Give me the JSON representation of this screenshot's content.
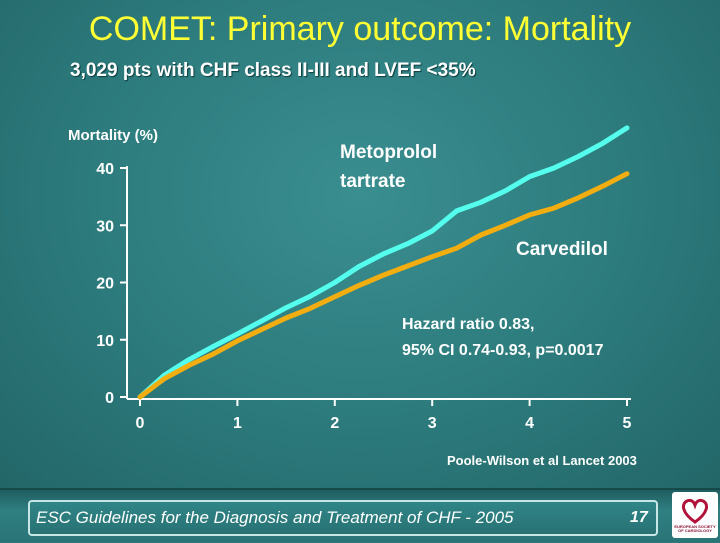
{
  "title": "COMET: Primary outcome: Mortality",
  "subtitle": "3,029 pts with CHF class II-III and LVEF <35%",
  "citation": "Poole-Wilson et al Lancet 2003",
  "annotations": {
    "hazard_line1": "Hazard ratio 0.83,",
    "hazard_line2": "95% CI 0.74-0.93, p=0.0017"
  },
  "footer": {
    "text": "ESC Guidelines for the Diagnosis and Treatment of CHF - 2005",
    "page_number": "17",
    "logo_text": "EUROPEAN SOCIETY OF CARDIOLOGY"
  },
  "colors": {
    "metoprolol": "#55ffee",
    "carvedilol": "#f2ad10",
    "axis": "#ffffff",
    "title": "#ffff33"
  },
  "chart_data": {
    "type": "line",
    "ylabel": "Mortality (%)",
    "xlabel": "",
    "xlim": [
      0,
      5
    ],
    "ylim": [
      0,
      40
    ],
    "x_ticks": [
      "0",
      "1",
      "2",
      "3",
      "4",
      "5"
    ],
    "y_ticks": [
      "0",
      "10",
      "20",
      "30",
      "40"
    ],
    "grid": false,
    "legend": "inline labels",
    "series": [
      {
        "name": "Metoprolol tartrate",
        "label_line1": "Metoprolol",
        "label_line2": "tartrate",
        "x": [
          0,
          0.25,
          0.5,
          0.75,
          1.0,
          1.25,
          1.5,
          1.75,
          2.0,
          2.25,
          2.5,
          2.75,
          3.0,
          3.25,
          3.5,
          3.75,
          4.0,
          4.25,
          4.5,
          4.75,
          5.0
        ],
        "y": [
          0,
          3.8,
          6.5,
          8.8,
          11.0,
          13.3,
          15.6,
          17.6,
          20.0,
          22.8,
          25.0,
          26.8,
          29.0,
          32.5,
          34.0,
          36.0,
          38.5,
          40.0,
          42.0,
          44.3,
          47.0
        ]
      },
      {
        "name": "Carvedilol",
        "label_line1": "Carvedilol",
        "x": [
          0,
          0.25,
          0.5,
          0.75,
          1.0,
          1.25,
          1.5,
          1.75,
          2.0,
          2.25,
          2.5,
          2.75,
          3.0,
          3.25,
          3.5,
          3.75,
          4.0,
          4.25,
          4.5,
          4.75,
          5.0
        ],
        "y": [
          0,
          3.2,
          5.5,
          7.5,
          9.8,
          11.8,
          13.8,
          15.5,
          17.5,
          19.5,
          21.3,
          22.9,
          24.5,
          26.0,
          28.3,
          30.0,
          31.8,
          33.0,
          34.8,
          36.8,
          39.0
        ]
      }
    ]
  }
}
